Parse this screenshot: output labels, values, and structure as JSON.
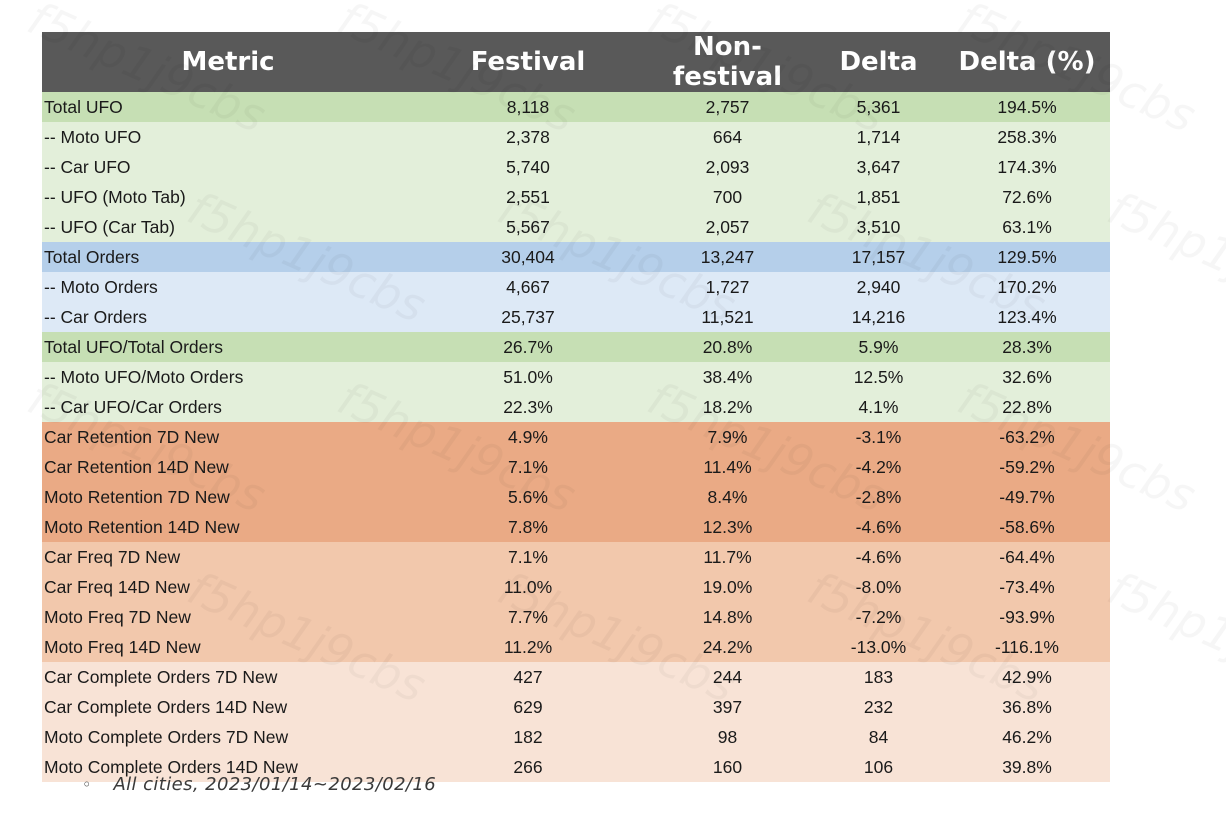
{
  "table": {
    "headers": [
      "Metric",
      "Festival",
      "Non-festival",
      "Delta",
      "Delta (%)"
    ],
    "rows": [
      {
        "metric": "Total UFO",
        "festival": "8,118",
        "non_festival": "2,757",
        "delta": "5,361",
        "delta_pct": "194.5%"
      },
      {
        "metric": "-- Moto UFO",
        "festival": "2,378",
        "non_festival": "664",
        "delta": "1,714",
        "delta_pct": "258.3%"
      },
      {
        "metric": "-- Car UFO",
        "festival": "5,740",
        "non_festival": "2,093",
        "delta": "3,647",
        "delta_pct": "174.3%"
      },
      {
        "metric": "-- UFO (Moto Tab)",
        "festival": "2,551",
        "non_festival": "700",
        "delta": "1,851",
        "delta_pct": "72.6%"
      },
      {
        "metric": "-- UFO (Car Tab)",
        "festival": "5,567",
        "non_festival": "2,057",
        "delta": "3,510",
        "delta_pct": "63.1%"
      },
      {
        "metric": "Total Orders",
        "festival": "30,404",
        "non_festival": "13,247",
        "delta": "17,157",
        "delta_pct": "129.5%"
      },
      {
        "metric": "-- Moto Orders",
        "festival": "4,667",
        "non_festival": "1,727",
        "delta": "2,940",
        "delta_pct": "170.2%"
      },
      {
        "metric": "-- Car Orders",
        "festival": "25,737",
        "non_festival": "11,521",
        "delta": "14,216",
        "delta_pct": "123.4%"
      },
      {
        "metric": "Total UFO/Total Orders",
        "festival": "26.7%",
        "non_festival": "20.8%",
        "delta": "5.9%",
        "delta_pct": "28.3%"
      },
      {
        "metric": "-- Moto UFO/Moto Orders",
        "festival": "51.0%",
        "non_festival": "38.4%",
        "delta": "12.5%",
        "delta_pct": "32.6%"
      },
      {
        "metric": "-- Car UFO/Car Orders",
        "festival": "22.3%",
        "non_festival": "18.2%",
        "delta": "4.1%",
        "delta_pct": "22.8%"
      },
      {
        "metric": "Car Retention 7D New",
        "festival": "4.9%",
        "non_festival": "7.9%",
        "delta": "-3.1%",
        "delta_pct": "-63.2%"
      },
      {
        "metric": "Car Retention 14D New",
        "festival": "7.1%",
        "non_festival": "11.4%",
        "delta": "-4.2%",
        "delta_pct": "-59.2%"
      },
      {
        "metric": "Moto Retention 7D New",
        "festival": "5.6%",
        "non_festival": "8.4%",
        "delta": "-2.8%",
        "delta_pct": "-49.7%"
      },
      {
        "metric": "Moto Retention 14D New",
        "festival": "7.8%",
        "non_festival": "12.3%",
        "delta": "-4.6%",
        "delta_pct": "-58.6%"
      },
      {
        "metric": "Car Freq 7D New",
        "festival": "7.1%",
        "non_festival": "11.7%",
        "delta": "-4.6%",
        "delta_pct": "-64.4%"
      },
      {
        "metric": "Car Freq 14D New",
        "festival": "11.0%",
        "non_festival": "19.0%",
        "delta": "-8.0%",
        "delta_pct": "-73.4%"
      },
      {
        "metric": "Moto Freq 7D New",
        "festival": "7.7%",
        "non_festival": "14.8%",
        "delta": "-7.2%",
        "delta_pct": "-93.9%"
      },
      {
        "metric": "Moto Freq 14D New",
        "festival": "11.2%",
        "non_festival": "24.2%",
        "delta": "-13.0%",
        "delta_pct": "-116.1%"
      },
      {
        "metric": "Car Complete Orders 7D New",
        "festival": "427",
        "non_festival": "244",
        "delta": "183",
        "delta_pct": "42.9%"
      },
      {
        "metric": "Car Complete Orders 14D New",
        "festival": "629",
        "non_festival": "397",
        "delta": "232",
        "delta_pct": "36.8%"
      },
      {
        "metric": "Moto Complete Orders 7D New",
        "festival": "182",
        "non_festival": "98",
        "delta": "84",
        "delta_pct": "46.2%"
      },
      {
        "metric": "Moto Complete Orders 14D New",
        "festival": "266",
        "non_festival": "160",
        "delta": "106",
        "delta_pct": "39.8%"
      }
    ]
  },
  "colors": {
    "header_bg": "#595959",
    "ufo_total": "#c6dfb4",
    "ufo_sub": "#e3efda",
    "orders_total": "#b5cfea",
    "orders_sub": "#dde9f6",
    "retention": "#eaaa85",
    "frequency": "#f2c8ac",
    "complete_orders": "#f8e3d6"
  },
  "note": {
    "bullet": "◦",
    "text": "All cities, 2023/01/14~2023/02/16"
  },
  "watermark": {
    "text": "f5hp1j9cbs"
  }
}
